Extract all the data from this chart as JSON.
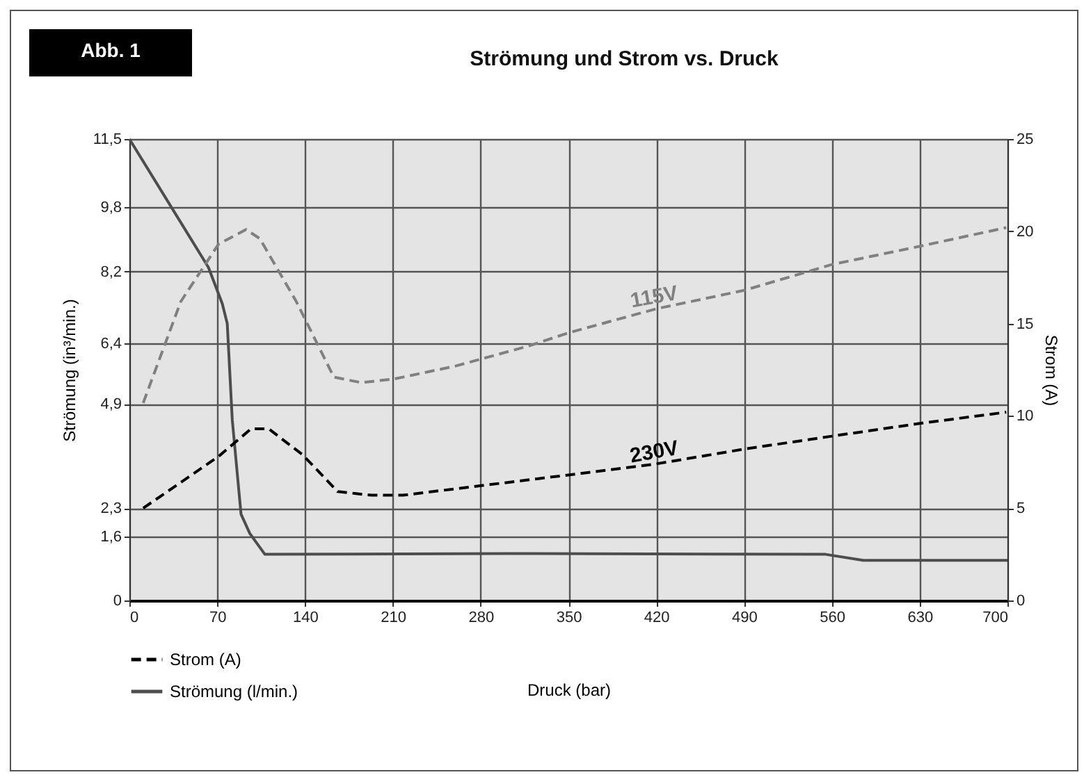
{
  "chart_data": {
    "type": "line",
    "title": "Strömung und Strom vs. Druck",
    "xlabel": "Druck (bar)",
    "ylabel": "Strömung (in³/min.)",
    "y2label": "Strom (A)",
    "annotations": [
      "Abb. 1"
    ],
    "xlim": [
      0,
      700
    ],
    "xticks": [
      0,
      70,
      140,
      210,
      280,
      350,
      420,
      490,
      560,
      630,
      700
    ],
    "ylim": [
      0,
      11.5
    ],
    "yticks": [
      0,
      {
        "value": 1.6,
        "label": "1,6"
      },
      {
        "value": 2.3,
        "label": "2,3"
      },
      {
        "value": 4.9,
        "label": "4,9"
      },
      {
        "value": 6.4,
        "label": "6,4"
      },
      {
        "value": 8.2,
        "label": "8,2"
      },
      {
        "value": 9.8,
        "label": "9,8"
      },
      {
        "value": 11.5,
        "label": "11,5"
      }
    ],
    "y2lim": [
      0,
      25
    ],
    "y2ticks": [
      0,
      5,
      10,
      15,
      20,
      25
    ],
    "grid": true,
    "legend": "bottom left",
    "series": [
      {
        "name": "Strömung (l/min.)",
        "color": "#4d4d4d",
        "line_style": "solid",
        "x": [
          0,
          63,
          74,
          78,
          82,
          89,
          96,
          108,
          300,
          555,
          585,
          700
        ],
        "values": [
          11.5,
          8.3,
          7.4,
          6.9,
          4.5,
          2.15,
          1.67,
          1.15,
          1.17,
          1.15,
          1.0,
          1.0
        ]
      },
      {
        "name": "115V",
        "color": "#808080",
        "line_style": "dashed",
        "axis": "y2",
        "x": [
          11,
          41,
          71,
          93,
          104,
          133,
          163,
          185,
          211,
          260,
          319,
          350,
          420,
          490,
          560,
          631,
          699
        ],
        "values": [
          10.7,
          16.2,
          19.3,
          20.1,
          19.6,
          16.2,
          12.1,
          11.8,
          12.0,
          12.7,
          13.8,
          14.5,
          15.8,
          16.8,
          18.2,
          19.2,
          20.2
        ]
      },
      {
        "name": "230V",
        "color": "#000000",
        "line_style": "dashed",
        "axis": "y2",
        "x": [
          11,
          71,
          97,
          111,
          138,
          166,
          193,
          218,
          266,
          326,
          350,
          420,
          490,
          560,
          631,
          699
        ],
        "values": [
          5.0,
          7.8,
          9.3,
          9.3,
          7.9,
          5.9,
          5.7,
          5.7,
          6.1,
          6.6,
          6.8,
          7.4,
          8.2,
          8.9,
          9.6,
          10.2
        ]
      }
    ]
  }
}
